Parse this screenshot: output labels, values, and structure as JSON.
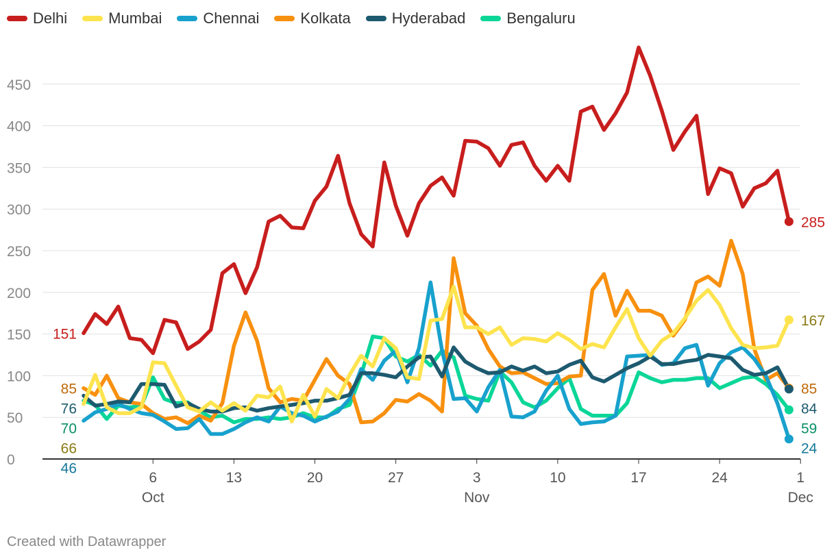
{
  "chart_data": {
    "type": "line",
    "title": "",
    "xlabel": "",
    "ylabel": "",
    "ylim": [
      0,
      500
    ],
    "yticks": [
      0,
      50,
      100,
      150,
      200,
      250,
      300,
      350,
      400,
      450
    ],
    "x_start_day": 0,
    "x_ticks": [
      {
        "day": 6,
        "label": "6",
        "month": "Oct"
      },
      {
        "day": 13,
        "label": "13",
        "month": ""
      },
      {
        "day": 20,
        "label": "20",
        "month": ""
      },
      {
        "day": 27,
        "label": "27",
        "month": ""
      },
      {
        "day": 34,
        "label": "3",
        "month": "Nov"
      },
      {
        "day": 41,
        "label": "10",
        "month": ""
      },
      {
        "day": 48,
        "label": "17",
        "month": ""
      },
      {
        "day": 55,
        "label": "24",
        "month": ""
      },
      {
        "day": 62,
        "label": "1",
        "month": "Dec"
      }
    ],
    "series": [
      {
        "name": "Delhi",
        "color": "#c71e1d",
        "start_label": "151",
        "end_label": "285",
        "values": [
          151,
          174,
          162,
          183,
          145,
          143,
          127,
          167,
          164,
          132,
          141,
          155,
          223,
          234,
          199,
          230,
          285,
          292,
          278,
          277,
          310,
          327,
          364,
          307,
          270,
          255,
          356,
          304,
          268,
          307,
          328,
          338,
          316,
          382,
          381,
          373,
          352,
          377,
          380,
          352,
          334,
          352,
          334,
          417,
          423,
          395,
          415,
          440,
          494,
          460,
          418,
          371,
          393,
          412,
          318,
          349,
          343,
          303,
          325,
          331,
          346,
          285
        ]
      },
      {
        "name": "Mumbai",
        "color": "#fde44f",
        "start_label": "66",
        "end_label": "167",
        "values": [
          66,
          101,
          62,
          55,
          55,
          62,
          116,
          115,
          88,
          62,
          57,
          68,
          58,
          67,
          58,
          76,
          74,
          87,
          45,
          77,
          51,
          84,
          73,
          101,
          124,
          111,
          145,
          133,
          98,
          96,
          166,
          168,
          207,
          158,
          158,
          150,
          158,
          137,
          145,
          144,
          141,
          151,
          143,
          132,
          138,
          134,
          158,
          180,
          145,
          124,
          142,
          151,
          169,
          190,
          203,
          185,
          157,
          137,
          133,
          134,
          136,
          167
        ]
      },
      {
        "name": "Chennai",
        "color": "#18a1cd",
        "start_label": "46",
        "end_label": "24",
        "values": [
          46,
          56,
          60,
          66,
          60,
          55,
          53,
          45,
          36,
          37,
          48,
          30,
          30,
          36,
          44,
          50,
          45,
          63,
          55,
          52,
          45,
          51,
          57,
          72,
          108,
          95,
          118,
          130,
          92,
          133,
          212,
          130,
          72,
          73,
          57,
          86,
          107,
          51,
          50,
          57,
          82,
          100,
          60,
          42,
          44,
          45,
          52,
          123,
          124,
          125,
          113,
          115,
          133,
          137,
          88,
          115,
          128,
          134,
          120,
          100,
          67,
          24
        ]
      },
      {
        "name": "Kolkata",
        "color": "#f8900f",
        "start_label": "85",
        "end_label": "85",
        "values": [
          85,
          77,
          100,
          73,
          68,
          66,
          55,
          48,
          50,
          43,
          52,
          46,
          67,
          136,
          176,
          142,
          85,
          68,
          72,
          70,
          95,
          120,
          100,
          90,
          44,
          45,
          55,
          71,
          69,
          78,
          70,
          57,
          241,
          175,
          160,
          132,
          111,
          103,
          104,
          97,
          90,
          91,
          99,
          100,
          203,
          222,
          172,
          202,
          178,
          178,
          172,
          148,
          167,
          212,
          219,
          208,
          262,
          222,
          132,
          95,
          103,
          85
        ]
      },
      {
        "name": "Hyderabad",
        "color": "#1d5a6f",
        "start_label": "76",
        "end_label": "84",
        "values": [
          76,
          64,
          66,
          69,
          68,
          90,
          90,
          89,
          63,
          67,
          60,
          57,
          57,
          61,
          62,
          58,
          61,
          63,
          65,
          67,
          70,
          70,
          73,
          77,
          103,
          103,
          101,
          98,
          111,
          122,
          123,
          99,
          134,
          117,
          109,
          103,
          104,
          111,
          106,
          111,
          103,
          105,
          113,
          118,
          98,
          93,
          101,
          109,
          115,
          123,
          114,
          114,
          117,
          119,
          125,
          123,
          121,
          107,
          101,
          103,
          110,
          84
        ]
      },
      {
        "name": "Bengaluru",
        "color": "#0bd698",
        "start_label": "70",
        "end_label": "59",
        "values": [
          70,
          65,
          48,
          64,
          62,
          64,
          98,
          72,
          67,
          68,
          58,
          50,
          52,
          44,
          48,
          48,
          50,
          48,
          50,
          55,
          50,
          50,
          60,
          65,
          101,
          147,
          145,
          123,
          117,
          125,
          112,
          130,
          122,
          76,
          72,
          70,
          105,
          92,
          68,
          62,
          70,
          85,
          97,
          60,
          52,
          52,
          52,
          67,
          104,
          97,
          92,
          95,
          95,
          97,
          97,
          85,
          91,
          97,
          99,
          90,
          77,
          59
        ]
      }
    ]
  },
  "footer": {
    "credit": "Created with Datawrapper"
  }
}
